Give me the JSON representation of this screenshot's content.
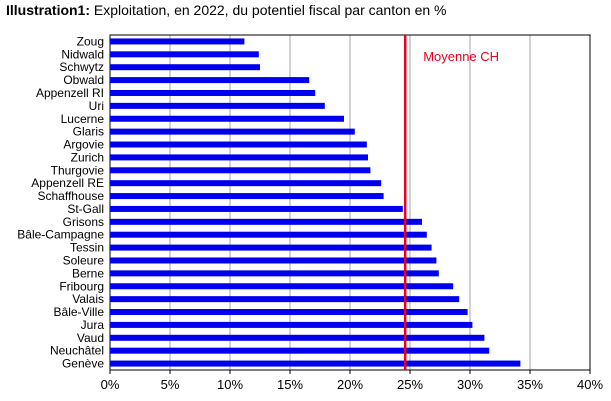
{
  "title": {
    "bold": "Illustration1:",
    "text": "Exploitation, en 2022, du potentiel fiscal par canton en %"
  },
  "chart_data": {
    "type": "bar",
    "orientation": "horizontal",
    "categories": [
      "Zoug",
      "Nidwald",
      "Schwytz",
      "Obwald",
      "Appenzell RI",
      "Uri",
      "Lucerne",
      "Glaris",
      "Argovie",
      "Zurich",
      "Thurgovie",
      "Appenzell RE",
      "Schaffhouse",
      "St-Gall",
      "Grisons",
      "Bâle-Campagne",
      "Tessin",
      "Soleure",
      "Berne",
      "Fribourg",
      "Valais",
      "Bâle-Ville",
      "Jura",
      "Vaud",
      "Neuchâtel",
      "Genève"
    ],
    "values": [
      11.2,
      12.4,
      12.5,
      16.6,
      17.1,
      17.9,
      19.5,
      20.4,
      21.4,
      21.5,
      21.7,
      22.6,
      22.8,
      24.4,
      26.0,
      26.4,
      26.8,
      27.2,
      27.4,
      28.6,
      29.1,
      29.8,
      30.2,
      31.2,
      31.6,
      34.2
    ],
    "xlim": [
      0,
      40
    ],
    "xticks": [
      0,
      5,
      10,
      15,
      20,
      25,
      30,
      35,
      40
    ],
    "xtick_labels": [
      "0%",
      "5%",
      "10%",
      "15%",
      "20%",
      "25%",
      "30%",
      "35%",
      "40%"
    ],
    "grid": "vertical",
    "bar_color": "#0000ee",
    "reference_line": {
      "label": "Moyenne CH",
      "value": 24.6,
      "color": "#e8001c"
    }
  }
}
